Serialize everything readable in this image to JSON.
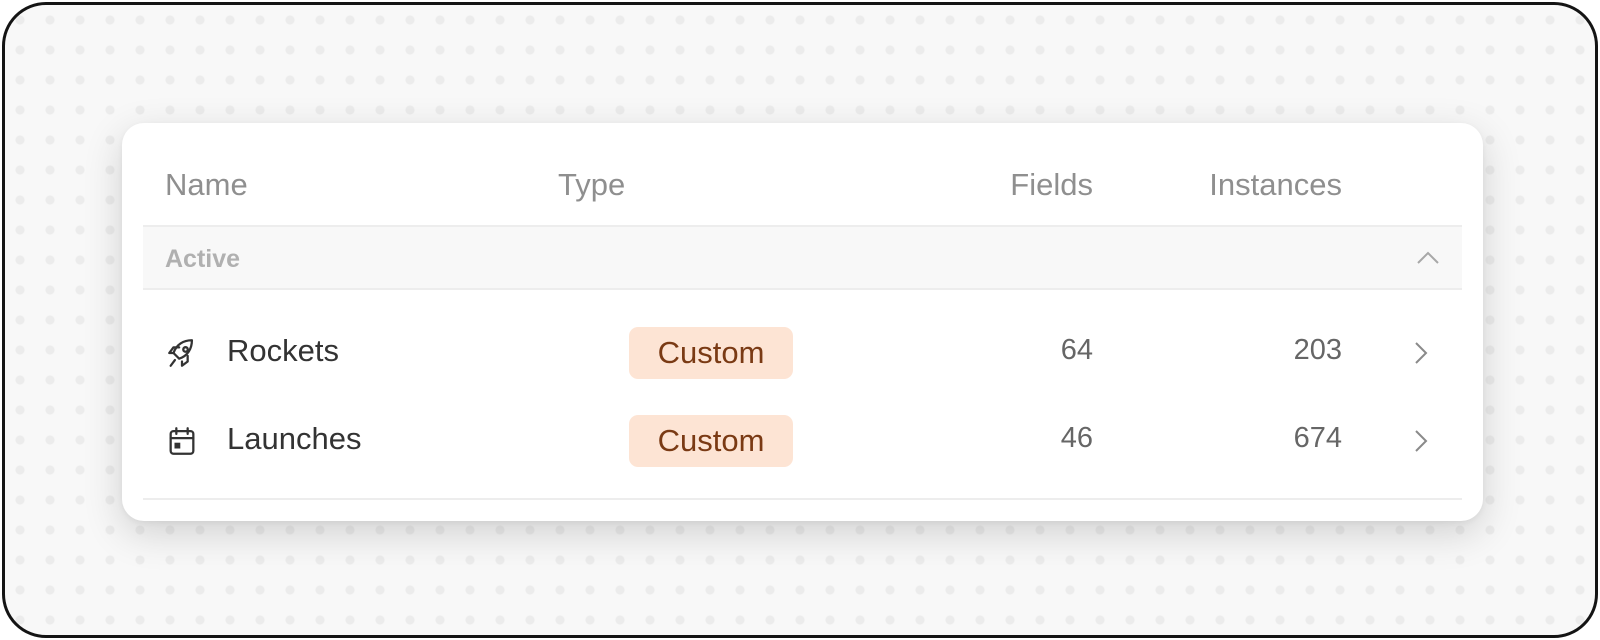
{
  "table": {
    "columns": {
      "name": "Name",
      "type": "Type",
      "fields": "Fields",
      "instances": "Instances"
    },
    "groups": [
      {
        "label": "Active",
        "expanded": true,
        "rows": [
          {
            "icon": "rocket-icon",
            "name": "Rockets",
            "type": "Custom",
            "fields": "64",
            "instances": "203"
          },
          {
            "icon": "calendar-icon",
            "name": "Launches",
            "type": "Custom",
            "fields": "46",
            "instances": "674"
          }
        ]
      }
    ]
  },
  "colors": {
    "badge_bg": "#fde4d4",
    "badge_text": "#7a3a14"
  }
}
